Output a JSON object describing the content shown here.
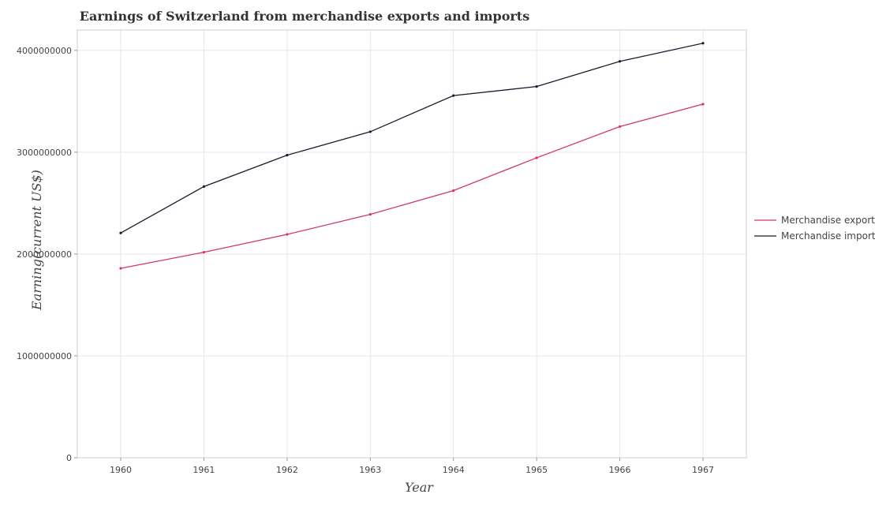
{
  "chart_data": {
    "type": "line",
    "title": "Earnings of Switzerland from merchandise exports and imports",
    "xlabel": "Year",
    "ylabel": "Earning(current US$)",
    "categories": [
      "1960",
      "1961",
      "1962",
      "1963",
      "1964",
      "1965",
      "1966",
      "1967"
    ],
    "y_ticks": [
      0,
      1000000000,
      2000000000,
      3000000000,
      4000000000
    ],
    "y_tick_labels": [
      "0",
      "1000000000",
      "2000000000",
      "3000000000",
      "4000000000"
    ],
    "ylim": [
      0,
      4200000000
    ],
    "grid": true,
    "legend_position": "right",
    "series": [
      {
        "name": "Merchandise exports",
        "color": "#d6336c",
        "values": [
          1860000000,
          2018000000,
          2193000000,
          2390000000,
          2623000000,
          2945000000,
          3252000000,
          3472000000
        ]
      },
      {
        "name": "Merchandise imports",
        "color": "#1a1a2e",
        "values": [
          2207000000,
          2663000000,
          2971000000,
          3201000000,
          3556000000,
          3645000000,
          3892000000,
          4070000000
        ]
      }
    ]
  }
}
